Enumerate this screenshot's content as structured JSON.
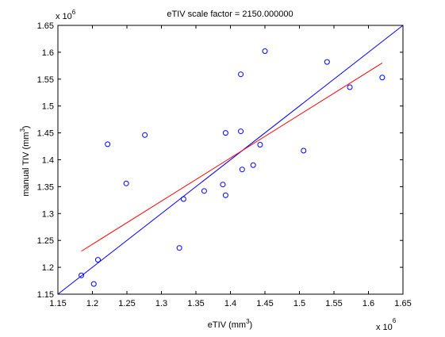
{
  "chart_data": {
    "type": "scatter",
    "title": "eTIV scale factor = 2150.000000",
    "xlabel": "eTIV (mm",
    "xlabel_sup": "3",
    "xlabel_close": ")",
    "ylabel": "manual TIV (mm",
    "ylabel_sup": "3",
    "ylabel_close": ")",
    "xlim": [
      1.15,
      1.65
    ],
    "ylim": [
      1.15,
      1.65
    ],
    "x_ticks": [
      1.15,
      1.2,
      1.25,
      1.3,
      1.35,
      1.4,
      1.45,
      1.5,
      1.55,
      1.6,
      1.65
    ],
    "x_tick_labels": [
      "1.15",
      "1.2",
      "1.25",
      "1.3",
      "1.35",
      "1.4",
      "1.45",
      "1.5",
      "1.55",
      "1.6",
      "1.65"
    ],
    "y_ticks": [
      1.15,
      1.2,
      1.25,
      1.3,
      1.35,
      1.4,
      1.45,
      1.5,
      1.55,
      1.6,
      1.65
    ],
    "y_tick_labels": [
      "1.15",
      "1.2",
      "1.25",
      "1.3",
      "1.35",
      "1.4",
      "1.45",
      "1.5",
      "1.55",
      "1.6",
      "1.65"
    ],
    "x_multiplier": "x 10",
    "x_multiplier_exp": "6",
    "y_multiplier": "x 10",
    "y_multiplier_exp": "6",
    "points": [
      [
        1.184,
        1.185
      ],
      [
        1.202,
        1.169
      ],
      [
        1.208,
        1.214
      ],
      [
        1.222,
        1.429
      ],
      [
        1.249,
        1.356
      ],
      [
        1.276,
        1.446
      ],
      [
        1.326,
        1.236
      ],
      [
        1.332,
        1.327
      ],
      [
        1.362,
        1.342
      ],
      [
        1.389,
        1.354
      ],
      [
        1.393,
        1.334
      ],
      [
        1.393,
        1.45
      ],
      [
        1.415,
        1.559
      ],
      [
        1.415,
        1.453
      ],
      [
        1.417,
        1.382
      ],
      [
        1.433,
        1.39
      ],
      [
        1.443,
        1.428
      ],
      [
        1.45,
        1.602
      ],
      [
        1.506,
        1.417
      ],
      [
        1.54,
        1.582
      ],
      [
        1.573,
        1.535
      ],
      [
        1.62,
        1.553
      ]
    ],
    "identity_line": {
      "x": [
        1.15,
        1.65
      ],
      "y": [
        1.15,
        1.65
      ]
    },
    "fit_line": {
      "x": [
        1.184,
        1.62
      ],
      "y": [
        1.23,
        1.58
      ]
    },
    "colors": {
      "points": "#0000ff",
      "identity_line": "#0000ff",
      "fit_line": "#ff0000",
      "axes": "#000000"
    },
    "grid": false
  }
}
